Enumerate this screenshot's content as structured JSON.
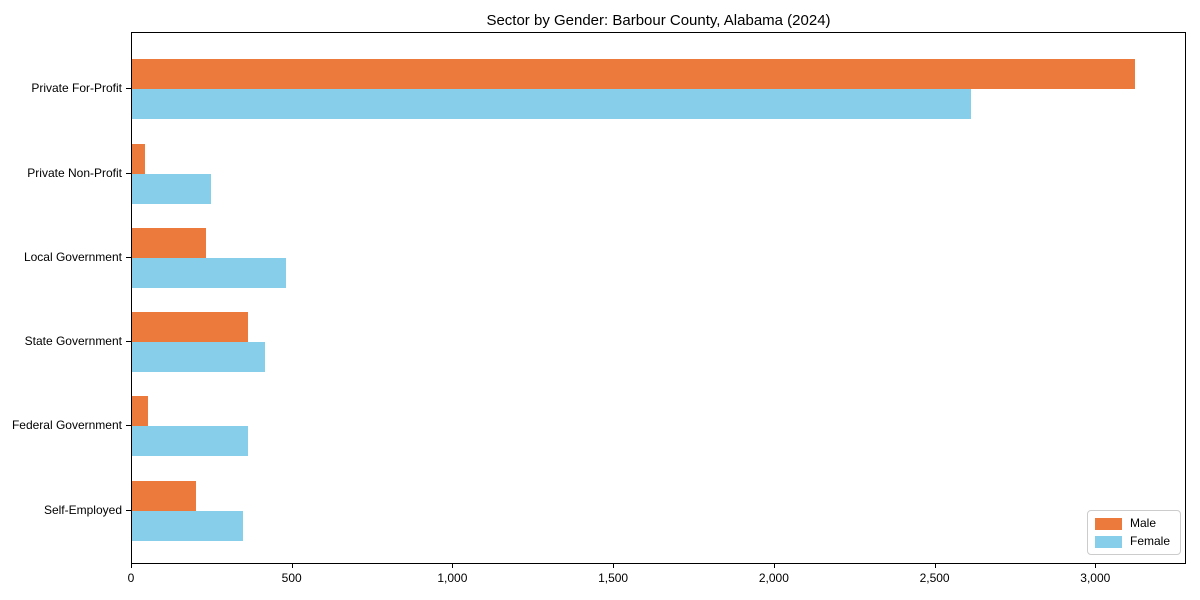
{
  "chart_data": {
    "type": "bar",
    "orientation": "horizontal",
    "title": "Sector by Gender: Barbour County, Alabama (2024)",
    "categories": [
      "Private For-Profit",
      "Private Non-Profit",
      "Local Government",
      "State Government",
      "Federal Government",
      "Self-Employed"
    ],
    "series": [
      {
        "name": "Male",
        "color": "#EC7A3C",
        "values": [
          3120,
          40,
          230,
          360,
          50,
          200
        ]
      },
      {
        "name": "Female",
        "color": "#87CEEB",
        "values": [
          2610,
          245,
          480,
          415,
          360,
          345
        ]
      }
    ],
    "xlabel": "",
    "ylabel": "",
    "xlim": [
      0,
      3276
    ],
    "x_ticks": [
      0,
      500,
      1000,
      1500,
      2000,
      2500,
      3000
    ],
    "x_tick_labels": [
      "0",
      "500",
      "1,000",
      "1,500",
      "2,000",
      "2,500",
      "3,000"
    ],
    "legend_position": "lower right",
    "grid": false
  }
}
